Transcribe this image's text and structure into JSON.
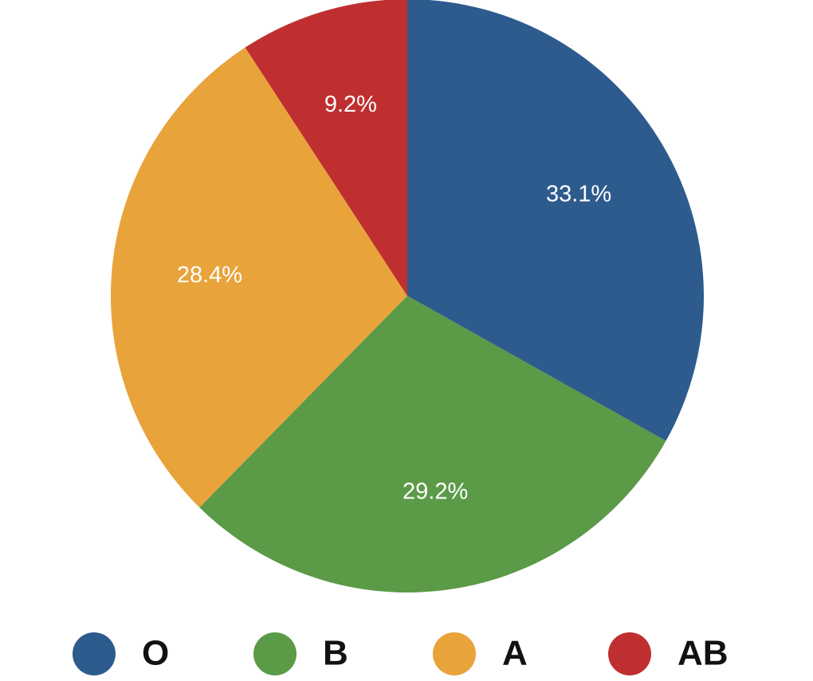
{
  "chart_data": {
    "type": "pie",
    "categories": [
      "O",
      "B",
      "A",
      "AB"
    ],
    "values": [
      33.1,
      29.2,
      28.4,
      9.2
    ],
    "value_labels": [
      "33.1%",
      "29.2%",
      "28.4%",
      "9.2%"
    ],
    "colors": [
      "#2e5b8e",
      "#5b9a47",
      "#e8a33b",
      "#bf2f2f"
    ]
  }
}
